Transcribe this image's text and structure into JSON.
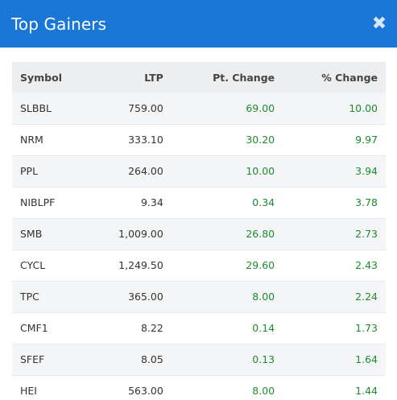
{
  "modal": {
    "title": "Top Gainers",
    "close_label": "✖"
  },
  "table": {
    "headers": [
      "Symbol",
      "LTP",
      "Pt. Change",
      "% Change"
    ],
    "positive_color": "#1e8b2e",
    "header_bg": "#eceef0",
    "accent": "#1a77d6",
    "rows": [
      {
        "symbol": "SLBBL",
        "ltp": "759.00",
        "pt_change": "69.00",
        "pct_change": "10.00"
      },
      {
        "symbol": "NRM",
        "ltp": "333.10",
        "pt_change": "30.20",
        "pct_change": "9.97"
      },
      {
        "symbol": "PPL",
        "ltp": "264.00",
        "pt_change": "10.00",
        "pct_change": "3.94"
      },
      {
        "symbol": "NIBLPF",
        "ltp": "9.34",
        "pt_change": "0.34",
        "pct_change": "3.78"
      },
      {
        "symbol": "SMB",
        "ltp": "1,009.00",
        "pt_change": "26.80",
        "pct_change": "2.73"
      },
      {
        "symbol": "CYCL",
        "ltp": "1,249.50",
        "pt_change": "29.60",
        "pct_change": "2.43"
      },
      {
        "symbol": "TPC",
        "ltp": "365.00",
        "pt_change": "8.00",
        "pct_change": "2.24"
      },
      {
        "symbol": "CMF1",
        "ltp": "8.22",
        "pt_change": "0.14",
        "pct_change": "1.73"
      },
      {
        "symbol": "SFEF",
        "ltp": "8.05",
        "pt_change": "0.13",
        "pct_change": "1.64"
      },
      {
        "symbol": "HEI",
        "ltp": "563.00",
        "pt_change": "8.00",
        "pct_change": "1.44"
      }
    ]
  }
}
